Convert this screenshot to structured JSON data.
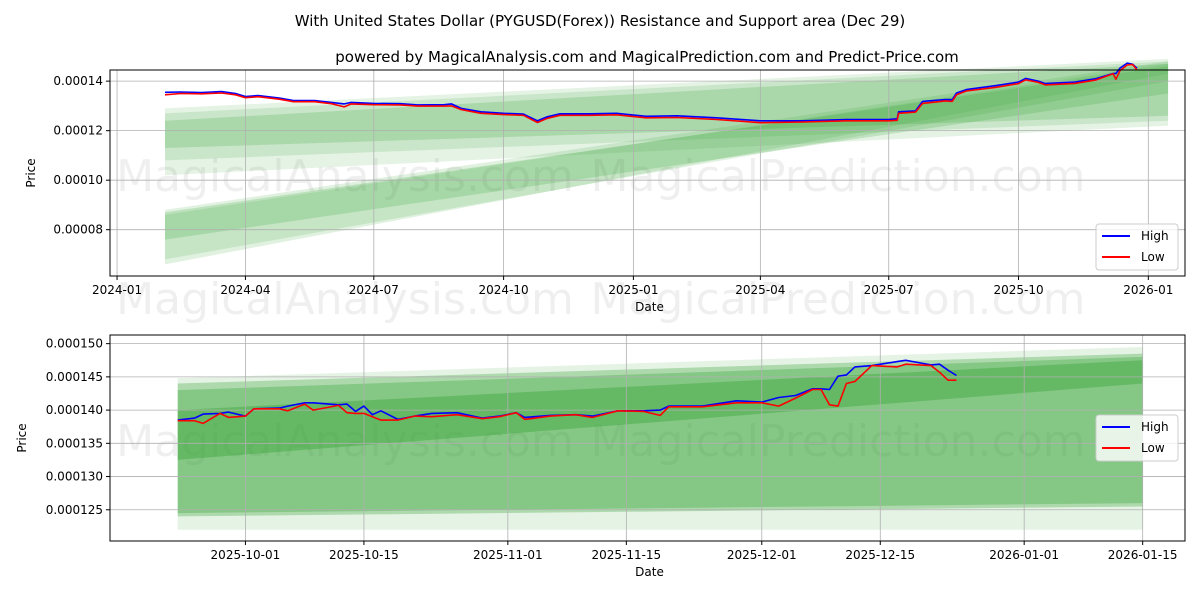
{
  "title": "With United States Dollar (PYGUSD(Forex)) Resistance and Support area (Dec 29)",
  "subtitle": "powered by MagicalAnalysis.com and MagicalPrediction.com and Predict-Price.com",
  "watermarks": [
    "MagicalAnalysis.com",
    "MagicalPrediction.com"
  ],
  "colors": {
    "high": "#0000ff",
    "low": "#ff0000",
    "band": "#2ca02c"
  },
  "chart_data": [
    {
      "type": "line",
      "xlabel": "Date",
      "ylabel": "Price",
      "xlim": [
        "2023-12-27",
        "2026-01-27"
      ],
      "ylim": [
        6.13e-05,
        0.0001445
      ],
      "grid": true,
      "legend_position": "lower-right",
      "xticks": [
        "2024-01",
        "2024-04",
        "2024-07",
        "2024-10",
        "2025-01",
        "2025-04",
        "2025-07",
        "2025-10",
        "2026-01"
      ],
      "xtick_dates": [
        "2024-01-01",
        "2024-04-01",
        "2024-07-01",
        "2024-10-01",
        "2025-01-01",
        "2025-04-01",
        "2025-07-01",
        "2025-10-01",
        "2026-01-01"
      ],
      "yticks": [
        "0.00008",
        "0.00010",
        "0.00012",
        "0.00014"
      ],
      "ytick_values": [
        8e-05,
        0.0001,
        0.00012,
        0.00014
      ],
      "bands": [
        {
          "start": "2024-02-04",
          "end": "2026-01-15",
          "start_range": [
            0.000102,
            0.000129
          ],
          "end_range": [
            0.000122,
            0.000149
          ],
          "opacity": 0.12
        },
        {
          "start": "2024-02-04",
          "end": "2026-01-15",
          "start_range": [
            0.000108,
            0.000127
          ],
          "end_range": [
            0.000124,
            0.000148
          ],
          "opacity": 0.15
        },
        {
          "start": "2024-02-04",
          "end": "2026-01-15",
          "start_range": [
            0.000113,
            0.000124
          ],
          "end_range": [
            0.000126,
            0.000147
          ],
          "opacity": 0.2
        },
        {
          "start": "2024-02-04",
          "end": "2026-01-15",
          "start_range": [
            6.6e-05,
            8.8e-05
          ],
          "end_range": [
            0.000143,
            0.000148
          ],
          "opacity": 0.15
        },
        {
          "start": "2024-02-04",
          "end": "2026-01-15",
          "start_range": [
            6.8e-05,
            8.6e-05
          ],
          "end_range": [
            0.00014,
            0.000147
          ],
          "opacity": 0.15
        },
        {
          "start": "2024-02-04",
          "end": "2026-01-15",
          "start_range": [
            7.6e-05,
            8.7e-05
          ],
          "end_range": [
            0.000135,
            0.000146
          ],
          "opacity": 0.2
        }
      ],
      "dates": [
        "2024-02-04",
        "2024-02-15",
        "2024-03-01",
        "2024-03-15",
        "2024-03-25",
        "2024-04-01",
        "2024-04-10",
        "2024-04-25",
        "2024-05-05",
        "2024-05-20",
        "2024-06-01",
        "2024-06-10",
        "2024-06-15",
        "2024-07-01",
        "2024-07-20",
        "2024-08-01",
        "2024-08-20",
        "2024-08-25",
        "2024-09-01",
        "2024-09-15",
        "2024-10-01",
        "2024-10-15",
        "2024-10-25",
        "2024-11-01",
        "2024-11-10",
        "2024-12-01",
        "2024-12-20",
        "2025-01-10",
        "2025-02-01",
        "2025-03-01",
        "2025-04-01",
        "2025-05-01",
        "2025-06-01",
        "2025-07-01",
        "2025-07-07",
        "2025-07-08",
        "2025-07-20",
        "2025-07-25",
        "2025-08-10",
        "2025-08-15",
        "2025-08-18",
        "2025-08-25",
        "2025-09-15",
        "2025-10-01",
        "2025-10-06",
        "2025-10-15",
        "2025-10-20",
        "2025-11-10",
        "2025-11-25",
        "2025-12-07",
        "2025-12-09",
        "2025-12-12",
        "2025-12-17",
        "2025-12-21",
        "2025-12-24"
      ],
      "series": [
        {
          "name": "High",
          "values": [
            0.0001355,
            0.0001356,
            0.0001354,
            0.0001358,
            0.000135,
            0.0001338,
            0.0001342,
            0.0001332,
            0.0001322,
            0.0001322,
            0.0001314,
            0.0001308,
            0.0001314,
            0.000131,
            0.0001309,
            0.0001304,
            0.0001305,
            0.0001308,
            0.000129,
            0.0001276,
            0.000127,
            0.0001267,
            0.000124,
            0.0001256,
            0.0001268,
            0.0001268,
            0.000127,
            0.0001258,
            0.000126,
            0.0001252,
            0.000124,
            0.000124,
            0.0001245,
            0.0001245,
            0.0001248,
            0.0001276,
            0.000128,
            0.0001318,
            0.0001326,
            0.0001325,
            0.0001352,
            0.0001366,
            0.0001382,
            0.0001396,
            0.0001411,
            0.00014,
            0.000139,
            0.0001396,
            0.000141,
            0.0001431,
            0.0001431,
            0.0001453,
            0.0001473,
            0.0001468,
            0.0001452
          ]
        },
        {
          "name": "Low",
          "values": [
            0.0001345,
            0.000135,
            0.0001349,
            0.0001352,
            0.0001345,
            0.0001333,
            0.0001337,
            0.0001327,
            0.0001317,
            0.0001317,
            0.0001309,
            0.0001296,
            0.0001308,
            0.0001305,
            0.0001304,
            0.0001299,
            0.0001299,
            0.00013,
            0.0001285,
            0.000127,
            0.0001265,
            0.0001262,
            0.0001233,
            0.000125,
            0.0001262,
            0.0001262,
            0.0001264,
            0.0001252,
            0.0001253,
            0.0001245,
            0.0001232,
            0.0001235,
            0.000124,
            0.000124,
            0.0001242,
            0.000127,
            0.0001275,
            0.000131,
            0.000132,
            0.0001318,
            0.0001345,
            0.000136,
            0.0001375,
            0.000139,
            0.0001405,
            0.0001395,
            0.0001385,
            0.0001391,
            0.0001405,
            0.000143,
            0.0001408,
            0.0001443,
            0.0001465,
            0.0001467,
            0.0001445
          ]
        }
      ]
    },
    {
      "type": "line",
      "xlabel": "Date",
      "ylabel": "Price",
      "xlim": [
        "2025-09-15",
        "2026-01-20"
      ],
      "ylim": [
        0.0001203,
        0.0001513
      ],
      "grid": true,
      "legend_position": "center-right",
      "xticks": [
        "2025-10-01",
        "2025-10-15",
        "2025-11-01",
        "2025-11-15",
        "2025-12-01",
        "2025-12-15",
        "2026-01-01",
        "2026-01-15"
      ],
      "xtick_dates": [
        "2025-10-01",
        "2025-10-15",
        "2025-11-01",
        "2025-11-15",
        "2025-12-01",
        "2025-12-15",
        "2026-01-01",
        "2026-01-15"
      ],
      "yticks": [
        "0.000125",
        "0.000130",
        "0.000135",
        "0.000140",
        "0.000145",
        "0.000150"
      ],
      "ytick_values": [
        0.000125,
        0.00013,
        0.000135,
        0.00014,
        0.000145,
        0.00015
      ],
      "bands": [
        {
          "start": "2025-09-23",
          "end": "2026-01-15",
          "start_range": [
            0.000122,
            0.0001448
          ],
          "end_range": [
            0.000122,
            0.0001495
          ],
          "opacity": 0.12
        },
        {
          "start": "2025-09-23",
          "end": "2026-01-15",
          "start_range": [
            0.000124,
            0.000144
          ],
          "end_range": [
            0.0001255,
            0.0001485
          ],
          "opacity": 0.3
        },
        {
          "start": "2025-09-23",
          "end": "2026-01-15",
          "start_range": [
            0.0001245,
            0.000143
          ],
          "end_range": [
            0.000126,
            0.000148
          ],
          "opacity": 0.3
        },
        {
          "start": "2025-09-23",
          "end": "2026-01-15",
          "start_range": [
            0.0001325,
            0.00014
          ],
          "end_range": [
            0.000144,
            0.0001475
          ],
          "opacity": 0.35
        }
      ],
      "dates": [
        "2025-09-23",
        "2025-09-25",
        "2025-09-26",
        "2025-09-28",
        "2025-09-29",
        "2025-10-01",
        "2025-10-02",
        "2025-10-05",
        "2025-10-06",
        "2025-10-08",
        "2025-10-09",
        "2025-10-12",
        "2025-10-13",
        "2025-10-14",
        "2025-10-15",
        "2025-10-16",
        "2025-10-17",
        "2025-10-19",
        "2025-10-21",
        "2025-10-23",
        "2025-10-26",
        "2025-10-29",
        "2025-10-31",
        "2025-11-02",
        "2025-11-03",
        "2025-11-06",
        "2025-11-09",
        "2025-11-11",
        "2025-11-14",
        "2025-11-17",
        "2025-11-19",
        "2025-11-20",
        "2025-11-24",
        "2025-11-28",
        "2025-12-01",
        "2025-12-03",
        "2025-12-05",
        "2025-12-07",
        "2025-12-08",
        "2025-12-09",
        "2025-12-10",
        "2025-12-11",
        "2025-12-12",
        "2025-12-14",
        "2025-12-17",
        "2025-12-18",
        "2025-12-21",
        "2025-12-22",
        "2025-12-23",
        "2025-12-24"
      ],
      "series": [
        {
          "name": "High",
          "values": [
            0.0001385,
            0.0001388,
            0.0001394,
            0.0001395,
            0.0001397,
            0.0001391,
            0.0001402,
            0.0001403,
            0.0001406,
            0.0001411,
            0.0001411,
            0.0001408,
            0.0001409,
            0.0001398,
            0.0001406,
            0.0001393,
            0.0001399,
            0.0001386,
            0.0001391,
            0.0001395,
            0.0001396,
            0.0001388,
            0.0001391,
            0.0001396,
            0.0001389,
            0.0001392,
            0.0001393,
            0.0001391,
            0.0001399,
            0.0001399,
            0.00014,
            0.0001406,
            0.0001406,
            0.0001414,
            0.0001412,
            0.0001419,
            0.0001422,
            0.0001432,
            0.0001432,
            0.0001431,
            0.0001451,
            0.0001453,
            0.0001465,
            0.0001467,
            0.0001473,
            0.0001475,
            0.0001468,
            0.0001469,
            0.000146,
            0.0001452
          ]
        },
        {
          "name": "Low",
          "values": [
            0.0001384,
            0.0001384,
            0.000138,
            0.0001395,
            0.0001389,
            0.0001391,
            0.0001402,
            0.0001402,
            0.0001399,
            0.0001409,
            0.00014,
            0.0001407,
            0.0001396,
            0.0001395,
            0.0001395,
            0.000139,
            0.0001385,
            0.0001385,
            0.0001391,
            0.000139,
            0.0001393,
            0.0001387,
            0.000139,
            0.0001396,
            0.0001386,
            0.0001391,
            0.0001393,
            0.0001389,
            0.0001399,
            0.0001398,
            0.0001392,
            0.0001405,
            0.0001405,
            0.0001411,
            0.0001411,
            0.0001406,
            0.0001418,
            0.0001431,
            0.0001431,
            0.0001408,
            0.0001406,
            0.000144,
            0.0001443,
            0.0001467,
            0.0001465,
            0.0001469,
            0.0001467,
            0.0001457,
            0.0001445,
            0.0001445
          ]
        }
      ]
    }
  ]
}
